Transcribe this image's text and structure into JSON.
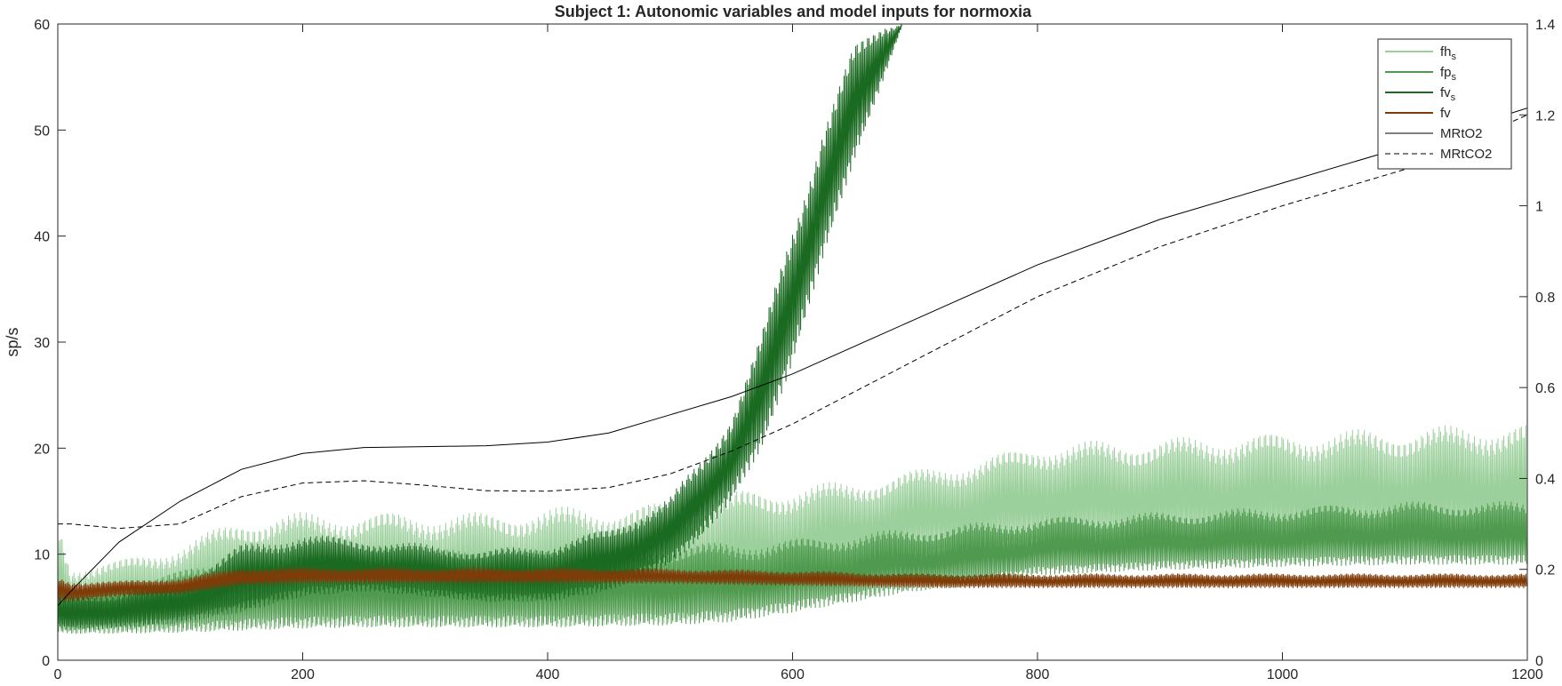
{
  "chart_data": {
    "type": "line",
    "title": "Subject 1: Autonomic variables and model inputs for normoxia",
    "xlabel": "",
    "ylabel_left": "sp/s",
    "ylabel_right": "",
    "xlim": [
      0,
      1200
    ],
    "ylim_left": [
      0,
      60
    ],
    "ylim_right": [
      0,
      1.4
    ],
    "x_ticks": [
      "0",
      "200",
      "400",
      "600",
      "800",
      "1000",
      "1200"
    ],
    "y_left_ticks": [
      "0",
      "10",
      "20",
      "30",
      "40",
      "50",
      "60"
    ],
    "y_right_ticks": [
      "0",
      "0.2",
      "0.4",
      "0.6",
      "0.8",
      "1",
      "1.2",
      "1.4"
    ],
    "grid": false,
    "legend_position": "top-right",
    "series": [
      {
        "name": "fh",
        "name_subscript": "s",
        "axis": "left",
        "color": "#9bcf9b",
        "style": "band",
        "x": [
          0,
          10,
          50,
          100,
          150,
          200,
          250,
          300,
          350,
          400,
          450,
          500,
          550,
          600,
          650,
          700,
          750,
          800,
          900,
          1000,
          1100,
          1200
        ],
        "lower": [
          2.5,
          2.5,
          2.6,
          2.7,
          3.0,
          3.2,
          3.2,
          3.2,
          3.2,
          3.2,
          3.3,
          3.5,
          4.0,
          5.5,
          7.5,
          9.0,
          9.5,
          10.0,
          10.0,
          10.0,
          10.0,
          10.0
        ],
        "upper": [
          14.0,
          9.0,
          9.5,
          11.0,
          13.5,
          14.0,
          14.0,
          14.0,
          14.0,
          14.5,
          14.5,
          15.0,
          16.0,
          16.5,
          17.0,
          18.0,
          19.0,
          20.5,
          21.0,
          21.5,
          22.0,
          22.5
        ]
      },
      {
        "name": "fp",
        "name_subscript": "s",
        "axis": "left",
        "color": "#4f9a4f",
        "style": "band",
        "x": [
          0,
          10,
          50,
          100,
          150,
          200,
          250,
          300,
          350,
          400,
          450,
          500,
          550,
          600,
          650,
          700,
          750,
          800,
          900,
          1000,
          1100,
          1200
        ],
        "lower": [
          2.5,
          2.5,
          2.5,
          2.6,
          2.8,
          3.0,
          3.1,
          3.1,
          3.1,
          3.1,
          3.2,
          3.3,
          3.6,
          4.5,
          5.5,
          6.5,
          7.0,
          8.0,
          8.5,
          8.8,
          9.0,
          9.0
        ],
        "upper": [
          8.0,
          7.0,
          7.5,
          8.5,
          10.0,
          10.5,
          10.5,
          10.5,
          10.5,
          10.5,
          10.8,
          11.0,
          11.2,
          11.5,
          12.0,
          12.5,
          13.0,
          13.5,
          14.0,
          14.5,
          15.0,
          15.0
        ]
      },
      {
        "name": "fv",
        "name_subscript": "s",
        "axis": "left",
        "color": "#1b6a22",
        "style": "band",
        "x": [
          0,
          10,
          50,
          100,
          150,
          200,
          250,
          300,
          350,
          400,
          450,
          500,
          525,
          550,
          575,
          600,
          625,
          650,
          675,
          690
        ],
        "lower": [
          3.0,
          2.8,
          3.0,
          3.5,
          4.5,
          6.0,
          6.5,
          6.0,
          5.5,
          5.5,
          6.5,
          9.0,
          11.5,
          15.0,
          20.0,
          28.0,
          38.0,
          47.0,
          55.0,
          60.0
        ],
        "upper": [
          6.0,
          6.0,
          6.5,
          7.5,
          11.0,
          12.0,
          11.5,
          11.0,
          10.5,
          11.0,
          12.5,
          15.5,
          19.0,
          23.5,
          31.0,
          41.0,
          51.0,
          58.0,
          60.0,
          60.0
        ]
      },
      {
        "name": "fv",
        "name_subscript": "",
        "axis": "left",
        "color": "#7f3b08",
        "style": "band",
        "x": [
          0,
          10,
          50,
          100,
          150,
          200,
          300,
          400,
          500,
          600,
          700,
          800,
          900,
          1000,
          1100,
          1200
        ],
        "lower": [
          5.5,
          5.5,
          6.0,
          6.2,
          7.0,
          7.2,
          7.2,
          7.2,
          7.2,
          7.0,
          6.8,
          6.8,
          6.8,
          6.8,
          6.8,
          6.8
        ],
        "upper": [
          8.0,
          7.5,
          7.5,
          7.8,
          8.8,
          8.8,
          8.8,
          8.8,
          8.7,
          8.5,
          8.2,
          8.2,
          8.2,
          8.2,
          8.2,
          8.2
        ]
      },
      {
        "name": "MRtO2",
        "name_subscript": "",
        "axis": "right",
        "color": "#000000",
        "style": "solid",
        "x": [
          0,
          10,
          50,
          100,
          150,
          200,
          250,
          300,
          350,
          400,
          450,
          500,
          550,
          600,
          700,
          800,
          900,
          1000,
          1100,
          1200
        ],
        "y": [
          0.12,
          0.15,
          0.26,
          0.35,
          0.42,
          0.455,
          0.468,
          0.47,
          0.472,
          0.48,
          0.5,
          0.54,
          0.58,
          0.63,
          0.75,
          0.87,
          0.97,
          1.05,
          1.13,
          1.215
        ]
      },
      {
        "name": "MRtCO2",
        "name_subscript": "",
        "axis": "right",
        "color": "#000000",
        "style": "dashed",
        "x": [
          0,
          10,
          50,
          100,
          150,
          200,
          250,
          300,
          350,
          400,
          450,
          500,
          550,
          600,
          650,
          700,
          800,
          900,
          1000,
          1100,
          1200
        ],
        "y": [
          0.3,
          0.3,
          0.29,
          0.3,
          0.36,
          0.39,
          0.395,
          0.385,
          0.373,
          0.372,
          0.38,
          0.41,
          0.46,
          0.52,
          0.59,
          0.66,
          0.8,
          0.91,
          1.0,
          1.08,
          1.2
        ]
      }
    ]
  }
}
